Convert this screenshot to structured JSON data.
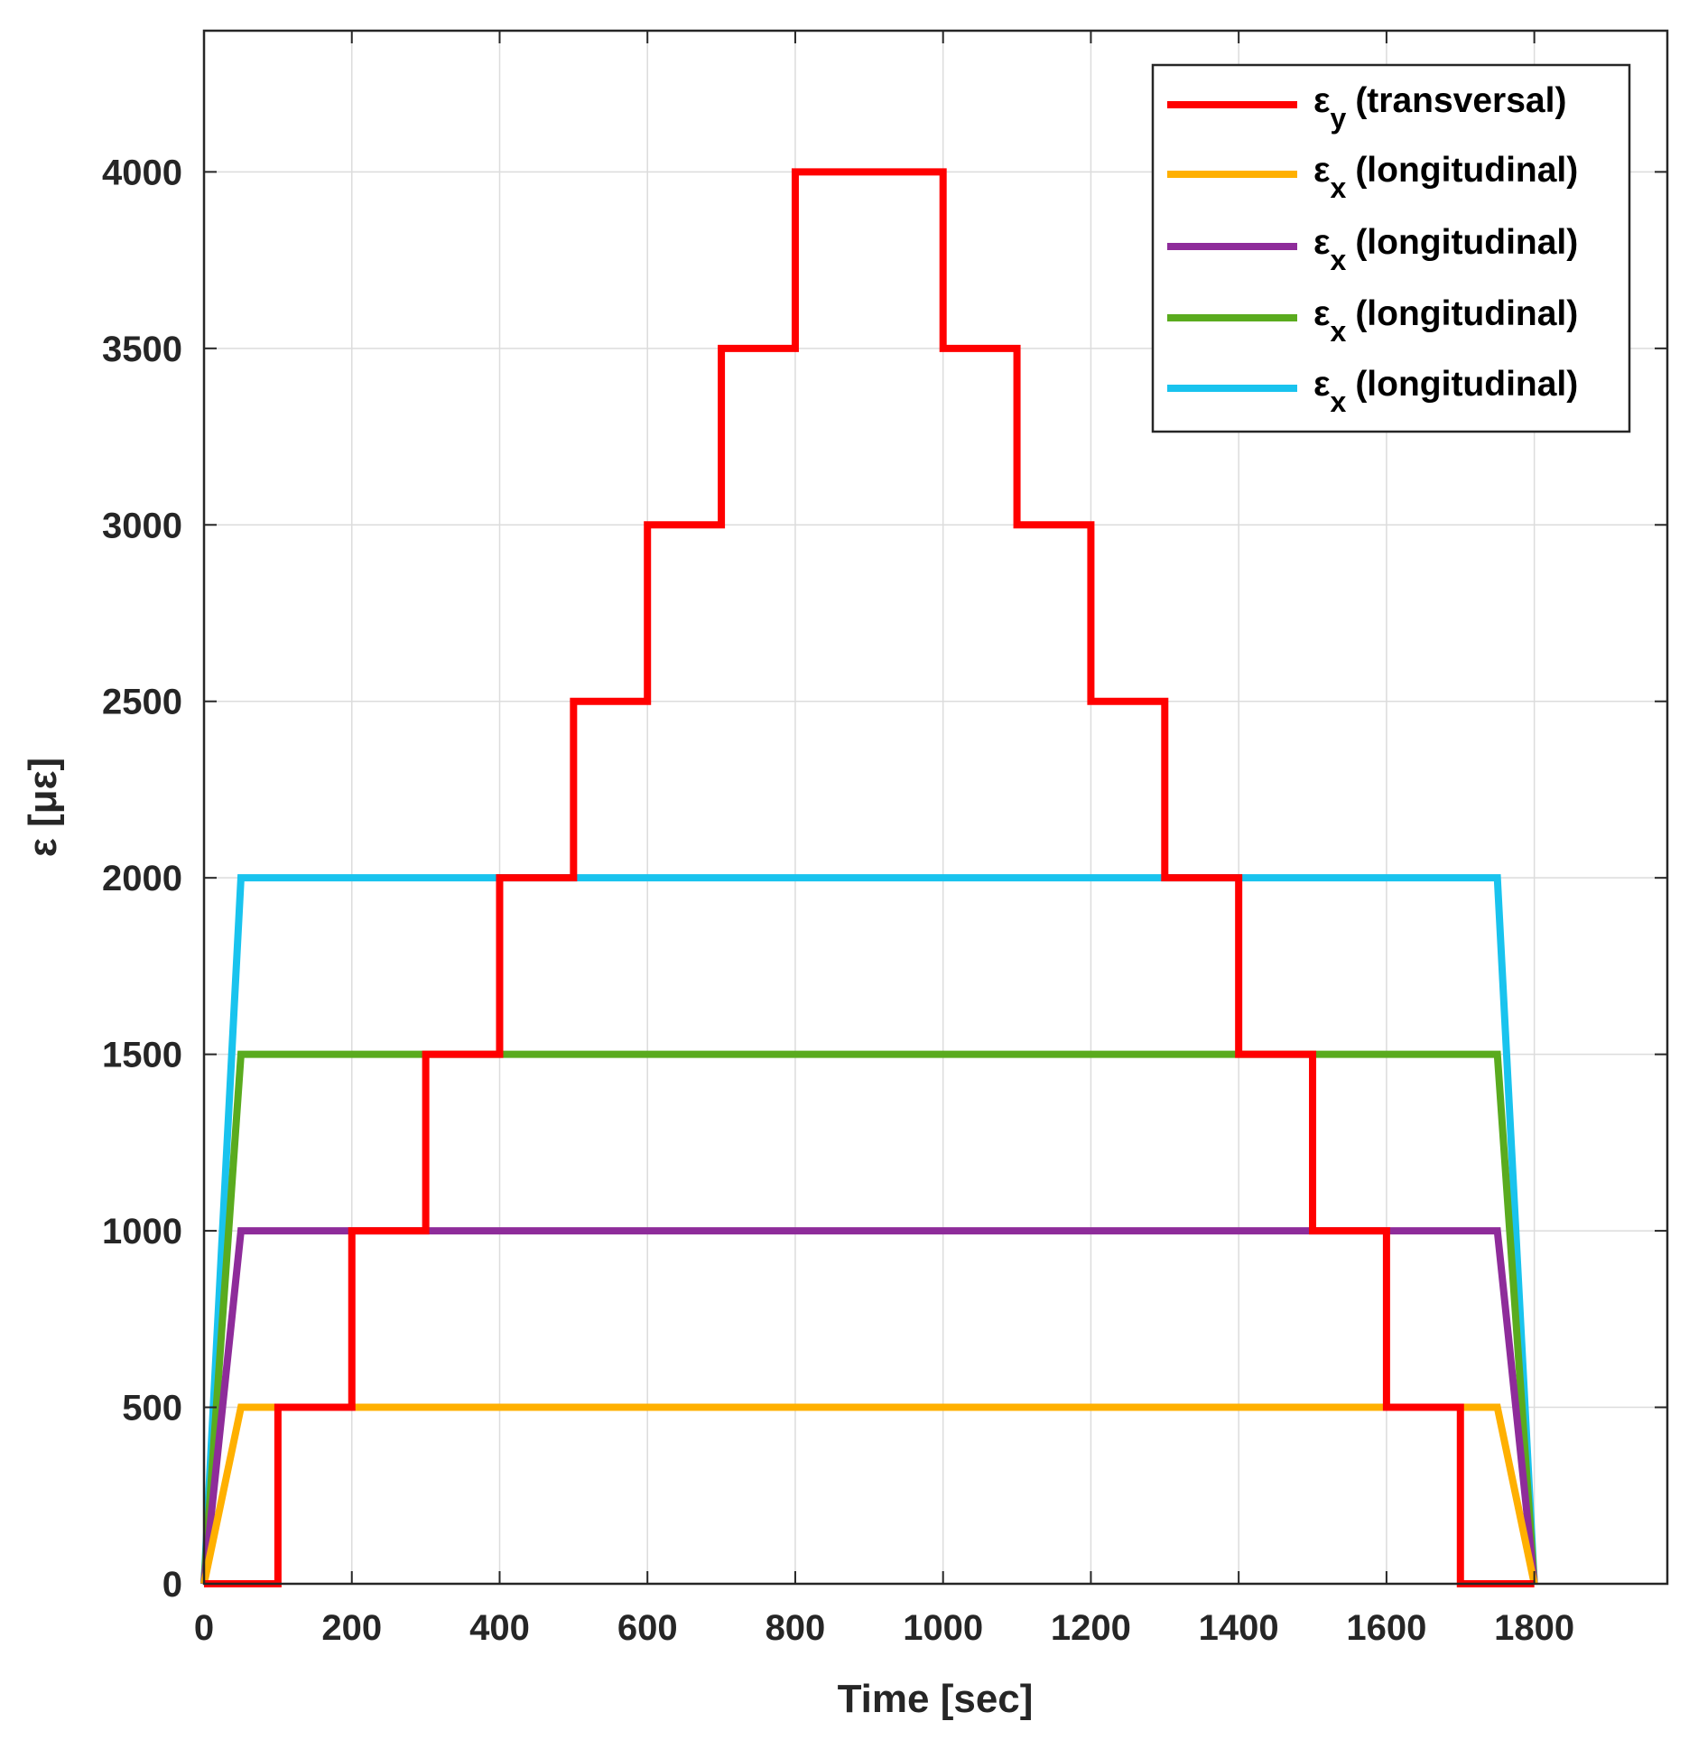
{
  "chart_data": {
    "type": "line",
    "title": "",
    "xlabel": "Time [sec]",
    "ylabel": "ε [με]",
    "xlim": [
      0,
      1980
    ],
    "ylim": [
      0,
      4400
    ],
    "xticks": [
      0,
      200,
      400,
      600,
      800,
      1000,
      1200,
      1400,
      1600,
      1800
    ],
    "yticks": [
      0,
      500,
      1000,
      1500,
      2000,
      2500,
      3000,
      3500,
      4000
    ],
    "grid": true,
    "legend_position": "top-right",
    "series": [
      {
        "name": "εy (transversal)",
        "legend_symbol": "ε",
        "legend_subscript": "y",
        "legend_suffix": "(transversal)",
        "color": "#ff0000",
        "x": [
          0,
          100,
          100,
          200,
          200,
          300,
          300,
          400,
          400,
          500,
          500,
          600,
          600,
          700,
          700,
          800,
          800,
          1000,
          1000,
          1100,
          1100,
          1200,
          1200,
          1300,
          1300,
          1400,
          1400,
          1500,
          1500,
          1600,
          1600,
          1700,
          1700,
          1800
        ],
        "y": [
          0,
          0,
          500,
          500,
          1000,
          1000,
          1500,
          1500,
          2000,
          2000,
          2500,
          2500,
          3000,
          3000,
          3500,
          3500,
          4000,
          4000,
          3500,
          3500,
          3000,
          3000,
          2500,
          2500,
          2000,
          2000,
          1500,
          1500,
          1000,
          1000,
          500,
          500,
          0,
          0
        ]
      },
      {
        "name": "εx (longitudinal)",
        "legend_symbol": "ε",
        "legend_subscript": "x",
        "legend_suffix": "(longitudinal)",
        "color": "#ffb000",
        "x": [
          0,
          50,
          1750,
          1800
        ],
        "y": [
          0,
          500,
          500,
          0
        ]
      },
      {
        "name": "εx (longitudinal)",
        "legend_symbol": "ε",
        "legend_subscript": "x",
        "legend_suffix": "(longitudinal)",
        "color": "#8e2c9a",
        "x": [
          0,
          50,
          1750,
          1800
        ],
        "y": [
          0,
          1000,
          1000,
          0
        ]
      },
      {
        "name": "εx (longitudinal)",
        "legend_symbol": "ε",
        "legend_subscript": "x",
        "legend_suffix": "(longitudinal)",
        "color": "#5aab1e",
        "x": [
          0,
          50,
          1750,
          1800
        ],
        "y": [
          0,
          1500,
          1500,
          0
        ]
      },
      {
        "name": "εx (longitudinal)",
        "legend_symbol": "ε",
        "legend_subscript": "x",
        "legend_suffix": "(longitudinal)",
        "color": "#19c3ee",
        "x": [
          0,
          50,
          1750,
          1800
        ],
        "y": [
          0,
          2000,
          2000,
          0
        ]
      }
    ]
  }
}
